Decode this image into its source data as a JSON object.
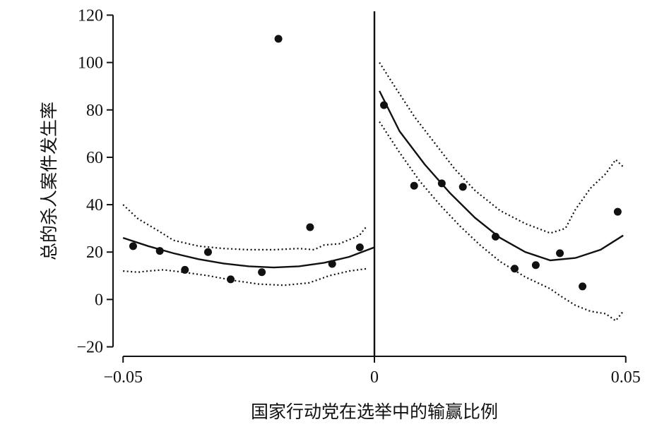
{
  "chart_data": {
    "type": "scatter",
    "xlabel": "国家行动党在选举中的输赢比例",
    "ylabel": "总的杀人案件发生率",
    "xlim": [
      -0.052,
      0.052
    ],
    "ylim": [
      -24,
      124
    ],
    "x_ticks": [
      -0.05,
      0,
      0.05
    ],
    "x_tick_labels": [
      "−0.05",
      "0",
      "0.05"
    ],
    "y_ticks": [
      -20,
      0,
      20,
      40,
      60,
      80,
      100,
      120
    ],
    "y_tick_labels": [
      "−20",
      "0",
      "20",
      "40",
      "60",
      "80",
      "100",
      "120"
    ],
    "cutoff_x": 0,
    "points": {
      "x": [
        -0.048,
        -0.0427,
        -0.0377,
        -0.0331,
        -0.0286,
        -0.0224,
        -0.0191,
        -0.0128,
        -0.0084,
        -0.0029,
        0.0019,
        0.0079,
        0.0134,
        0.0176,
        0.0241,
        0.0279,
        0.0321,
        0.0369,
        0.0414,
        0.0484
      ],
      "y": [
        22.5,
        20.5,
        12.5,
        20,
        8.5,
        11.5,
        110,
        30.5,
        15,
        22,
        82,
        48,
        49,
        47.5,
        26.5,
        13,
        14.5,
        19.5,
        5.5,
        37
      ]
    },
    "fit": {
      "left": {
        "x": [
          -0.05,
          -0.045,
          -0.04,
          -0.035,
          -0.03,
          -0.025,
          -0.02,
          -0.015,
          -0.01,
          -0.005,
          0
        ],
        "y": [
          26,
          22.5,
          19.5,
          17,
          15.2,
          14,
          13.5,
          14,
          15.5,
          18,
          22
        ]
      },
      "right": {
        "x": [
          0.001,
          0.005,
          0.01,
          0.015,
          0.02,
          0.025,
          0.03,
          0.035,
          0.04,
          0.045,
          0.0495
        ],
        "y": [
          88,
          71,
          57,
          45,
          34.5,
          26,
          20,
          16.5,
          17.5,
          21,
          27
        ]
      }
    },
    "ci_upper": {
      "left": {
        "x": [
          -0.05,
          -0.047,
          -0.043,
          -0.04,
          -0.035,
          -0.03,
          -0.025,
          -0.02,
          -0.015,
          -0.012,
          -0.01,
          -0.007,
          -0.003,
          -0.0015
        ],
        "y": [
          40,
          34,
          29,
          25,
          22.5,
          21.5,
          21,
          21,
          21.5,
          21,
          23,
          23.5,
          27,
          31
        ]
      },
      "right": {
        "x": [
          0.001,
          0.004,
          0.008,
          0.012,
          0.016,
          0.02,
          0.025,
          0.03,
          0.035,
          0.038,
          0.04,
          0.043,
          0.046,
          0.048,
          0.0495
        ],
        "y": [
          100,
          90,
          77,
          66,
          55,
          46,
          37.5,
          32,
          28,
          30,
          38,
          47,
          53,
          59,
          56
        ]
      }
    },
    "ci_lower": {
      "left": {
        "x": [
          -0.05,
          -0.047,
          -0.045,
          -0.042,
          -0.038,
          -0.033,
          -0.028,
          -0.023,
          -0.018,
          -0.013,
          -0.009,
          -0.005,
          -0.0015
        ],
        "y": [
          12,
          11.5,
          12,
          12.5,
          11.5,
          10,
          8,
          6.5,
          6,
          7,
          10,
          12,
          13
        ]
      },
      "right": {
        "x": [
          0.001,
          0.005,
          0.009,
          0.013,
          0.017,
          0.021,
          0.025,
          0.03,
          0.035,
          0.037,
          0.04,
          0.043,
          0.046,
          0.048,
          0.0495
        ],
        "y": [
          75,
          62,
          50,
          40,
          31,
          23,
          16,
          9.5,
          4.5,
          1.5,
          -2.5,
          -5,
          -6,
          -9,
          -5
        ]
      }
    },
    "grid": false,
    "legend": "none"
  }
}
